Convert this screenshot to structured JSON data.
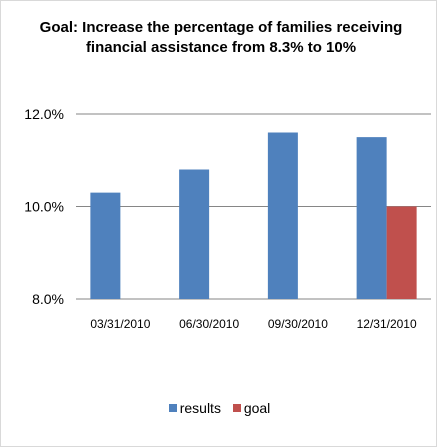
{
  "chart_data": {
    "type": "bar",
    "title": "Goal: Increase the percentage of families receiving financial assistance from 8.3% to 10%",
    "categories": [
      "03/31/2010",
      "06/30/2010",
      "09/30/2010",
      "12/31/2010"
    ],
    "series": [
      {
        "name": "results",
        "values": [
          10.3,
          10.8,
          11.6,
          11.5
        ],
        "color": "#4f81bd"
      },
      {
        "name": "goal",
        "values": [
          null,
          null,
          null,
          10.0
        ],
        "color": "#c0504d"
      }
    ],
    "ylim": [
      8.0,
      12.0
    ],
    "y_ticks": [
      "12.0%",
      "10.0%",
      "8.0%"
    ],
    "y_tick_values": [
      12.0,
      10.0,
      8.0
    ],
    "grid": true,
    "legend_position": "bottom",
    "xlabel": "",
    "ylabel": ""
  }
}
